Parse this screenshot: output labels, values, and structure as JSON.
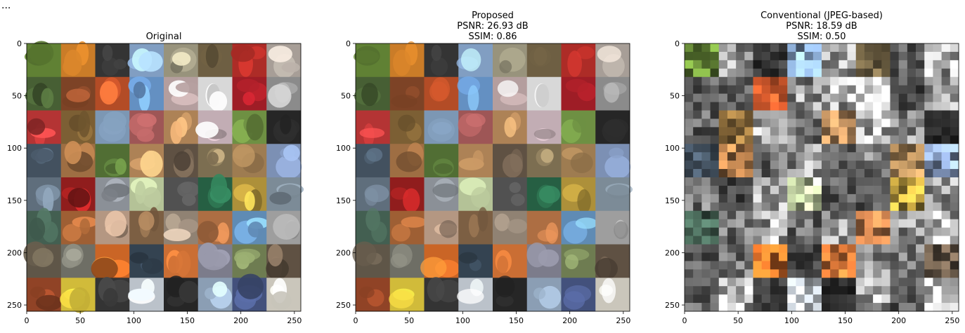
{
  "caption_fragment": "...",
  "chart_data": [
    {
      "type": "image-grid",
      "title": [
        "Original"
      ],
      "grid": {
        "rows": 8,
        "cols": 8
      },
      "xlim": [
        0,
        256
      ],
      "ylim": [
        256,
        0
      ],
      "xticks": [
        0,
        50,
        100,
        150,
        200,
        250
      ],
      "yticks": [
        0,
        50,
        100,
        150,
        200,
        250
      ],
      "style": "original",
      "seed": 11
    },
    {
      "type": "image-grid",
      "title": [
        "Proposed",
        "PSNR: 26.93 dB",
        "SSIM: 0.86"
      ],
      "grid": {
        "rows": 8,
        "cols": 8
      },
      "xlim": [
        0,
        256
      ],
      "ylim": [
        256,
        0
      ],
      "xticks": [
        0,
        50,
        100,
        150,
        200,
        250
      ],
      "yticks": [
        0,
        50,
        100,
        150,
        200,
        250
      ],
      "metrics": {
        "psnr_db": 26.93,
        "ssim": 0.86
      },
      "style": "proposed",
      "seed": 11
    },
    {
      "type": "image-grid",
      "title": [
        "Conventional (JPEG-based)",
        "PSNR: 18.59 dB",
        "SSIM: 0.50"
      ],
      "grid": {
        "rows": 8,
        "cols": 8
      },
      "xlim": [
        0,
        256
      ],
      "ylim": [
        256,
        0
      ],
      "xticks": [
        0,
        50,
        100,
        150,
        200,
        250
      ],
      "yticks": [
        0,
        50,
        100,
        150,
        200,
        250
      ],
      "metrics": {
        "psnr_db": 18.59,
        "ssim": 0.5
      },
      "style": "jpeg",
      "seed": 11
    }
  ]
}
